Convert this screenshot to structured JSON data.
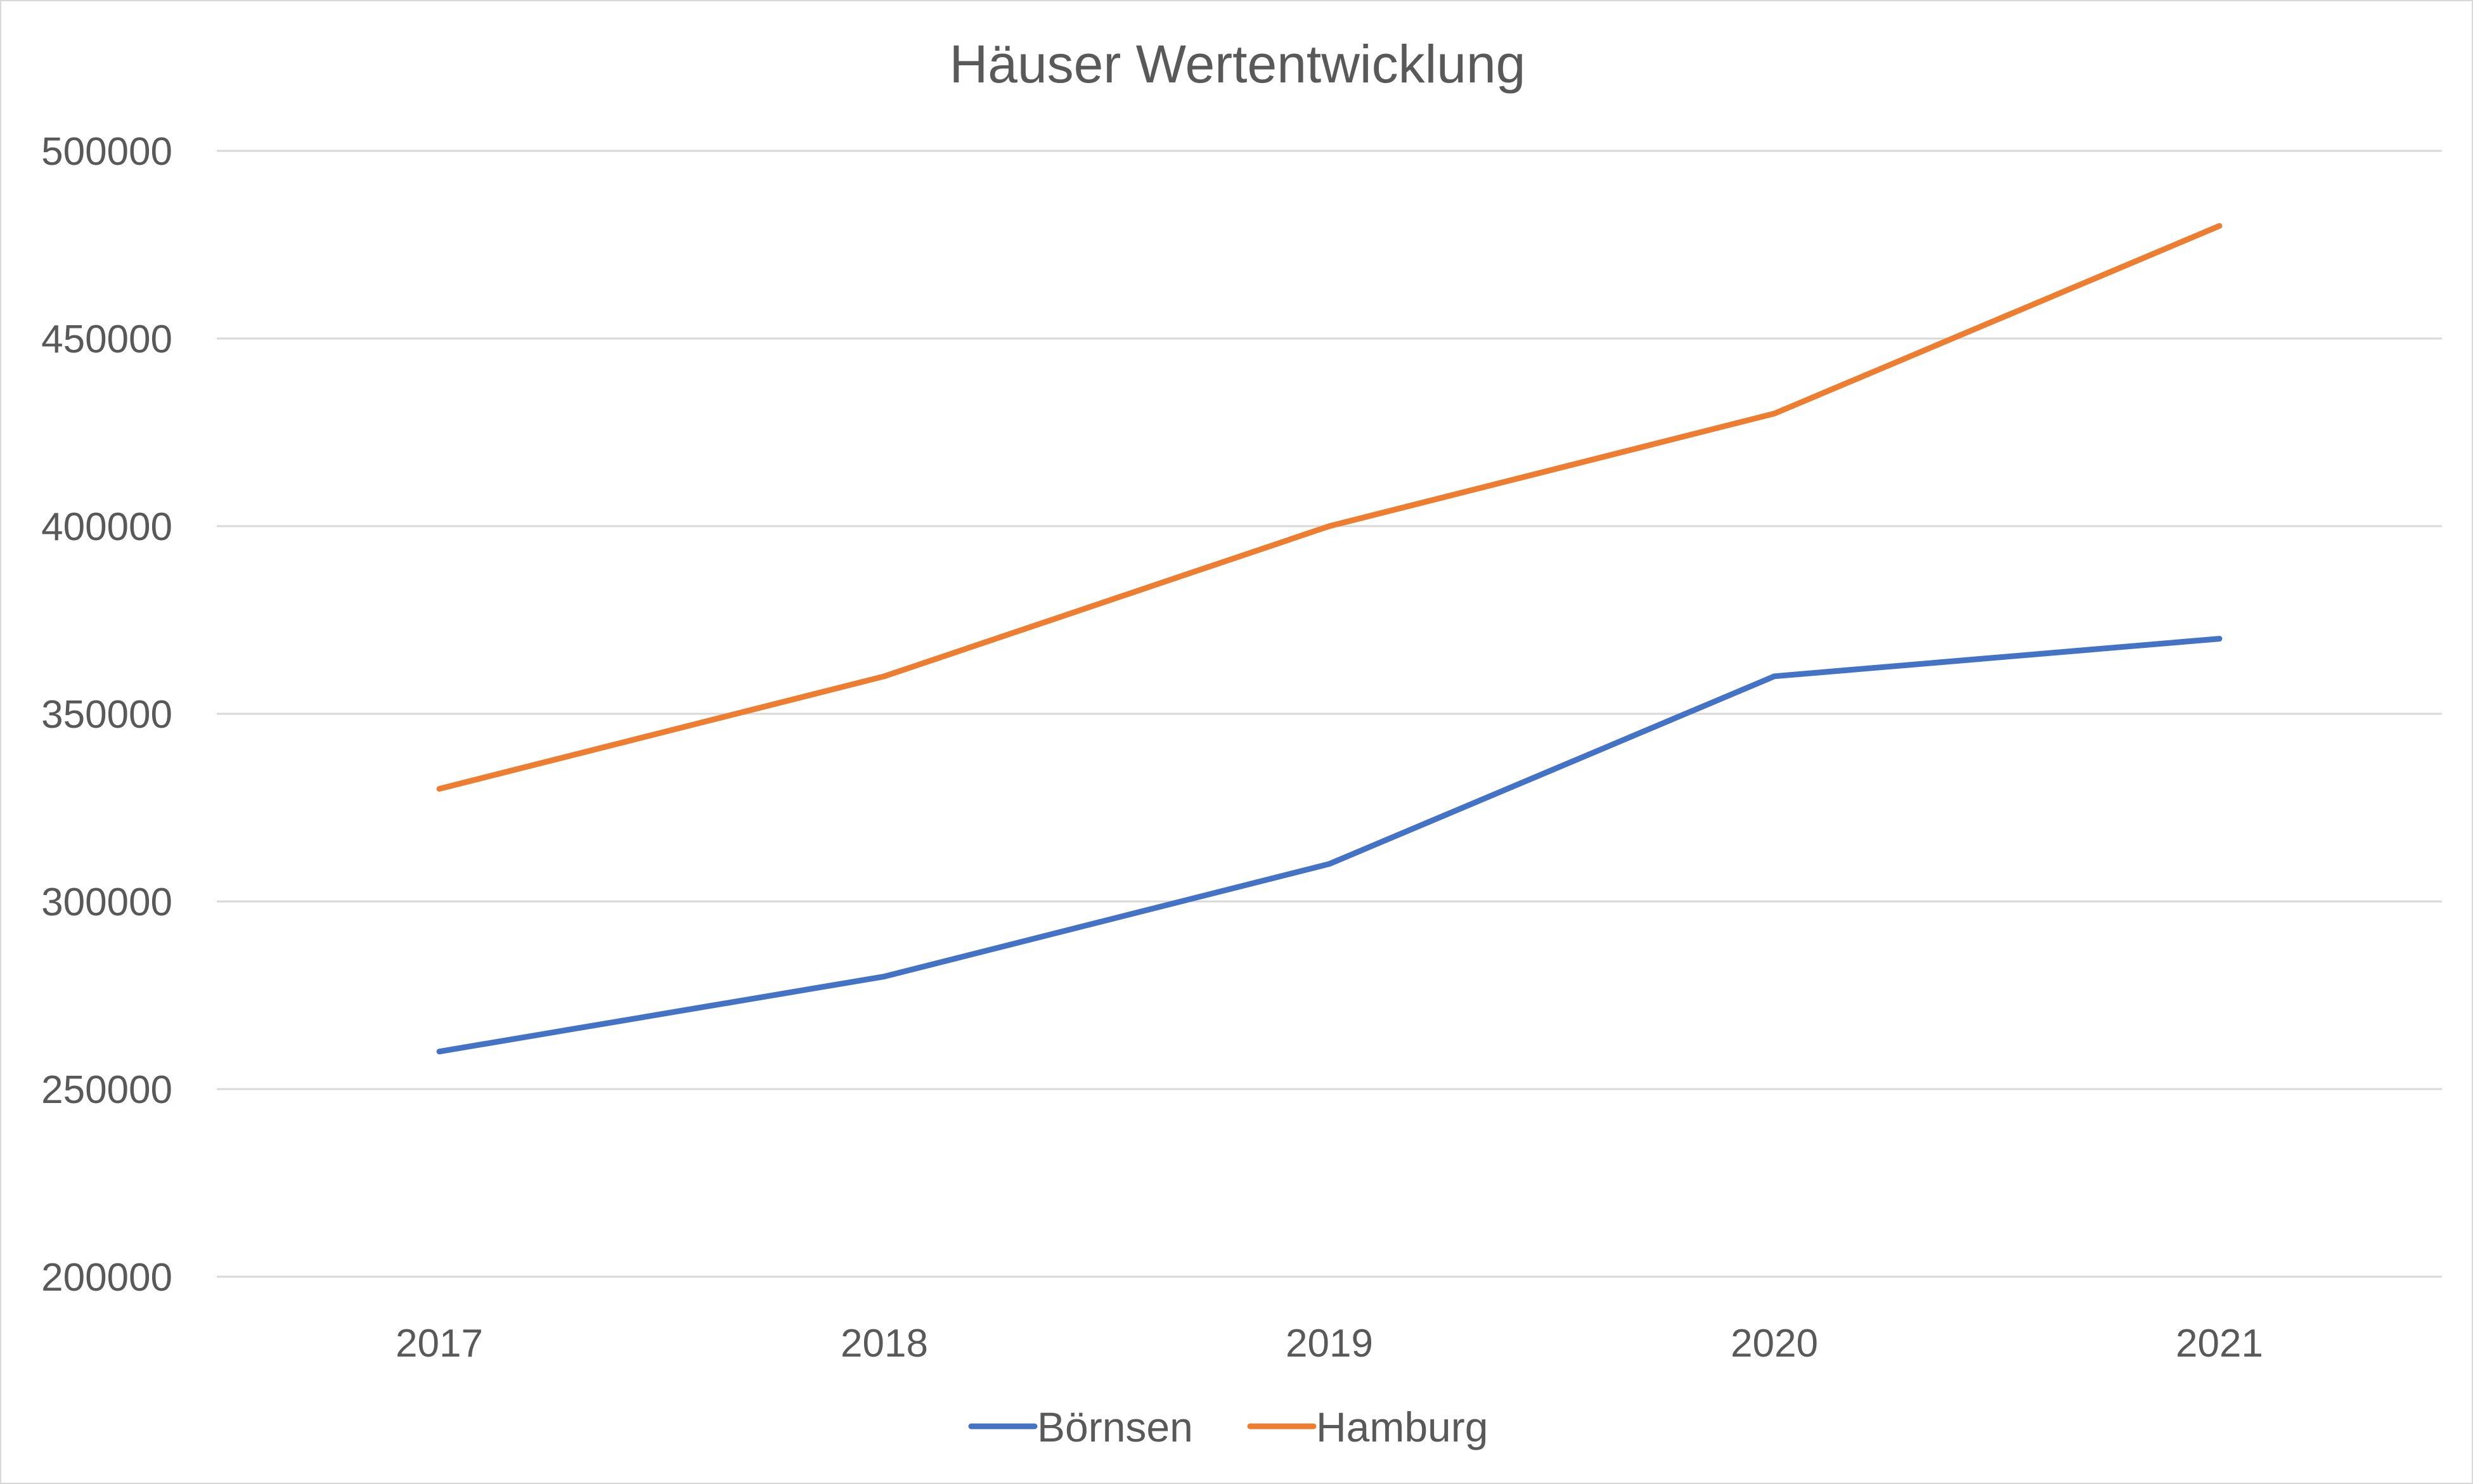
{
  "chart_data": {
    "type": "line",
    "title": "Häuser Wertentwicklung",
    "xlabel": "",
    "ylabel": "",
    "categories": [
      "2017",
      "2018",
      "2019",
      "2020",
      "2021"
    ],
    "ylim": [
      200000,
      500000
    ],
    "yticks": [
      "200000",
      "250000",
      "300000",
      "350000",
      "400000",
      "450000",
      "500000"
    ],
    "grid": true,
    "legend_position": "bottom",
    "series": [
      {
        "name": "Börnsen",
        "color": "#4472c4",
        "values": [
          260000,
          280000,
          310000,
          360000,
          370000
        ]
      },
      {
        "name": "Hamburg",
        "color": "#ed7d31",
        "values": [
          330000,
          360000,
          400000,
          430000,
          480000
        ]
      }
    ]
  }
}
